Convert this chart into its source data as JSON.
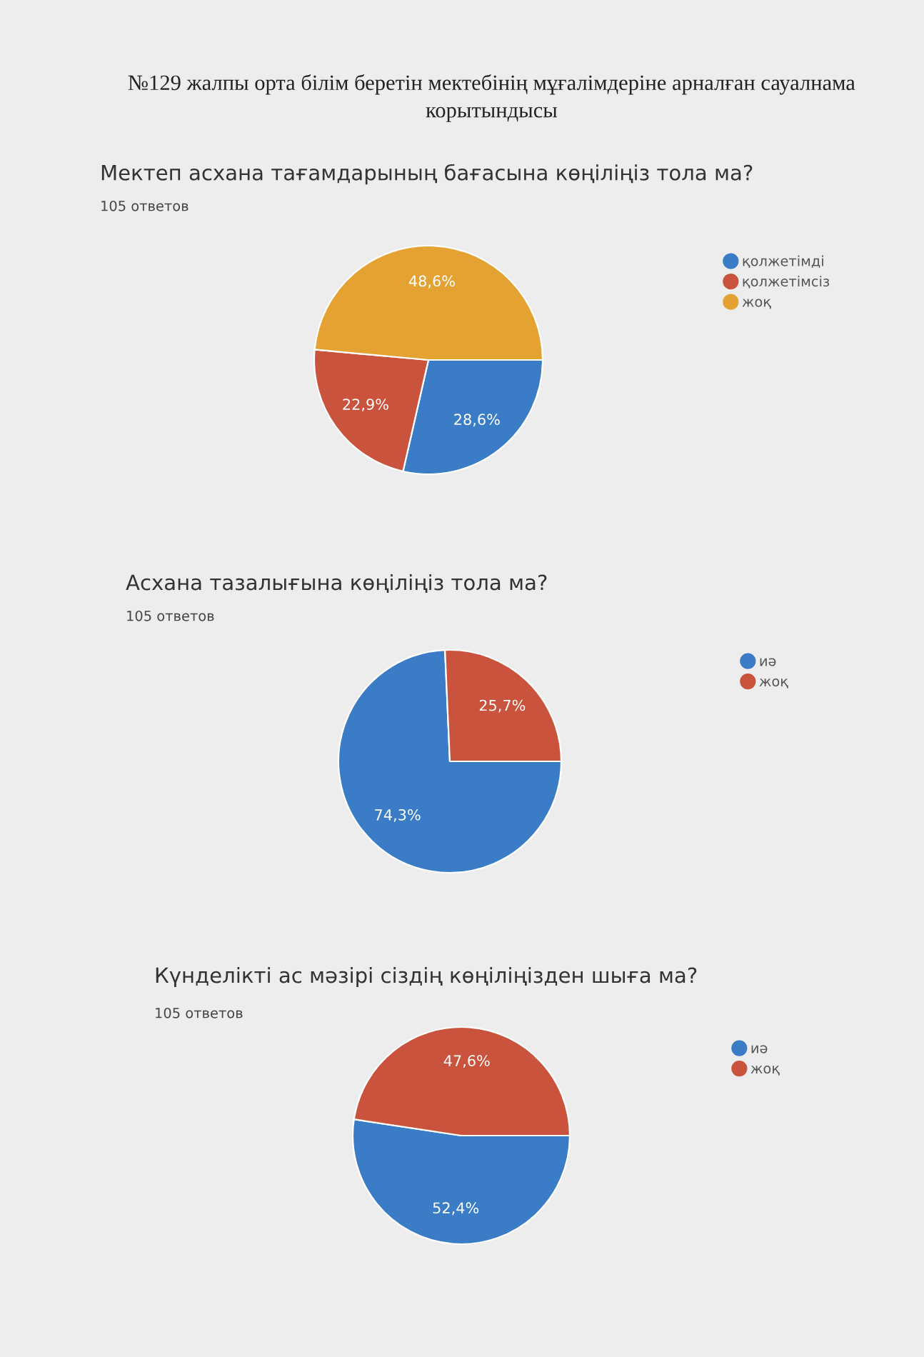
{
  "chart_data": [
    {
      "type": "pie",
      "title": "Мектеп асхана тағамдарының бағасына көңіліңіз тола ма?",
      "subtitle": "105 ответов",
      "annotations": [
        "№129 жалпы орта білім беретін мектебінің мұғалімдеріне арналған сауалнама\nкорытындысы"
      ],
      "categories": [
        "қолжетімді",
        "қолжетімсіз",
        "жоқ"
      ],
      "values": [
        28.6,
        22.9,
        48.6
      ],
      "colors": [
        "#3a7dc6",
        "#c9533c",
        "#e3a232"
      ],
      "value_labels": [
        "28,6%",
        "22,9%",
        "48,6%"
      ],
      "legend": "top right"
    },
    {
      "type": "pie",
      "title": "Асхана тазалығына көңіліңіз тола ма?",
      "subtitle": "105 ответов",
      "categories": [
        "иә",
        "жоқ"
      ],
      "values": [
        74.3,
        25.7
      ],
      "colors": [
        "#3a7dc6",
        "#c9533c"
      ],
      "value_labels": [
        "74,3%",
        "25,7%"
      ],
      "legend": "top right"
    },
    {
      "type": "pie",
      "title": "Күнделікті ас мәзірі сіздің көңіліңізден шыға ма?",
      "subtitle": "105 ответов",
      "categories": [
        "иә",
        "жоқ"
      ],
      "values": [
        52.4,
        47.6
      ],
      "colors": [
        "#3a7dc6",
        "#c9533c"
      ],
      "value_labels": [
        "52,4%",
        "47,6%"
      ],
      "legend": "top right"
    }
  ]
}
